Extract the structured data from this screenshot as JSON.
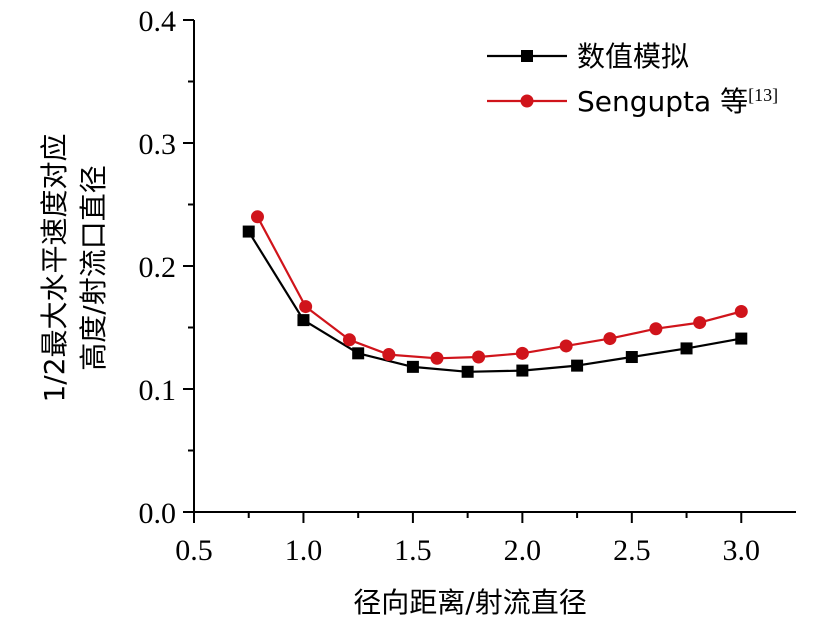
{
  "chart_data": {
    "type": "line",
    "xlabel": "径向距离/射流直径",
    "ylabel_lines": [
      "1/2最大水平速度对应",
      "高度/射流口直径"
    ],
    "xlim": [
      0.5,
      3.25
    ],
    "ylim": [
      0.0,
      0.4
    ],
    "xticks": [
      0.5,
      1.0,
      1.5,
      2.0,
      2.5,
      3.0
    ],
    "yticks": [
      0.0,
      0.1,
      0.2,
      0.3,
      0.4
    ],
    "xtick_labels": [
      "0.5",
      "1.0",
      "1.5",
      "2.0",
      "2.5",
      "3.0"
    ],
    "ytick_labels": [
      "0.0",
      "0.1",
      "0.2",
      "0.3",
      "0.4"
    ],
    "legend_position": "top-right",
    "grid": false,
    "series": [
      {
        "name": "数值模拟",
        "color": "#000000",
        "marker": "square",
        "x": [
          0.75,
          1.0,
          1.25,
          1.5,
          1.75,
          2.0,
          2.25,
          2.5,
          2.75,
          3.0
        ],
        "y": [
          0.228,
          0.156,
          0.129,
          0.118,
          0.114,
          0.115,
          0.119,
          0.126,
          0.133,
          0.141
        ]
      },
      {
        "name": "Sengupta 等",
        "name_superscript": "[13]",
        "color": "#d0141b",
        "marker": "circle",
        "x": [
          0.79,
          1.01,
          1.21,
          1.39,
          1.61,
          1.8,
          2.0,
          2.2,
          2.4,
          2.61,
          2.81,
          3.0
        ],
        "y": [
          0.24,
          0.167,
          0.14,
          0.128,
          0.125,
          0.126,
          0.129,
          0.135,
          0.141,
          0.149,
          0.154,
          0.163
        ]
      }
    ]
  }
}
